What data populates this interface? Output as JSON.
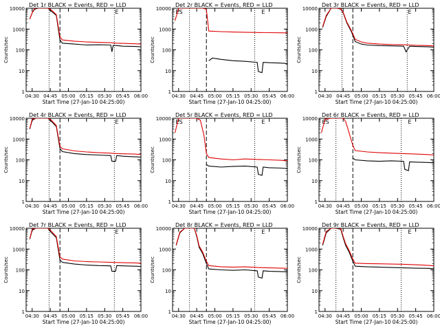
{
  "figure": {
    "xlabel": "Start Time (27-Jan-10 04:25:00)",
    "ylabel": "Counts/sec",
    "x_ticks": [
      "04:30",
      "04:45",
      "05:00",
      "05:15",
      "05:30",
      "05:45",
      "06:00"
    ],
    "y_ticks": [
      "1",
      "10",
      "100",
      "1000",
      "10000"
    ],
    "colors": {
      "events": "#000000",
      "lld": "#e00000",
      "axes": "#000000",
      "background": "#ffffff"
    }
  },
  "chart_data": [
    {
      "type": "line",
      "title": "Det 1r BLACK = Events, RED = LLD",
      "x_units": "minutes after 04:25:00",
      "y_scale": "log",
      "ylim": [
        1,
        10000
      ],
      "xlim": [
        0,
        95
      ],
      "markers": {
        "dotted": [
          19,
          73
        ],
        "dashed": [
          28
        ],
        "text_labels": [
          {
            "text": "E",
            "x": 73,
            "y": 10000
          }
        ]
      },
      "series": [
        {
          "color": "#000000",
          "x": [
            3,
            5,
            7,
            10,
            12,
            15,
            18,
            20,
            25,
            28,
            30,
            40,
            50,
            60,
            70,
            71,
            72,
            75,
            80,
            90,
            95
          ],
          "y": [
            3000,
            6000,
            9000,
            10000,
            10000,
            10000,
            10000,
            8000,
            4500,
            300,
            210,
            190,
            170,
            175,
            170,
            80,
            165,
            160,
            150,
            145,
            140
          ]
        },
        {
          "color": "#e00000",
          "x": [
            3,
            5,
            7,
            10,
            12,
            15,
            18,
            20,
            25,
            28,
            30,
            40,
            50,
            60,
            70,
            72,
            75,
            80,
            90,
            95
          ],
          "y": [
            3000,
            6000,
            10000,
            10000,
            10000,
            10000,
            10000,
            9000,
            5000,
            420,
            300,
            260,
            240,
            230,
            220,
            215,
            210,
            205,
            195,
            190
          ]
        }
      ]
    },
    {
      "type": "line",
      "title": "Det 2r BLACK = Events, RED = LLD",
      "x_units": "minutes after 04:25:00",
      "y_scale": "log",
      "ylim": [
        1,
        10000
      ],
      "xlim": [
        0,
        95
      ],
      "markers": {
        "dotted": [
          14,
          68
        ],
        "dashed": [
          28
        ],
        "text_labels": [
          {
            "text": "ES",
            "x": 2,
            "y": 10000
          },
          {
            "text": "E",
            "x": 73,
            "y": 10000
          }
        ]
      },
      "series": [
        {
          "color": "#000000",
          "x": [
            30,
            33,
            40,
            50,
            60,
            70,
            71,
            74,
            75,
            80,
            90,
            95
          ],
          "y": [
            30,
            40,
            35,
            30,
            28,
            25,
            9,
            8,
            25,
            24,
            23,
            22
          ]
        },
        {
          "color": "#e00000",
          "x": [
            2,
            5,
            10,
            15,
            20,
            25,
            28,
            30,
            40,
            50,
            60,
            70,
            80,
            90,
            95
          ],
          "y": [
            2500,
            10000,
            10000,
            10000,
            10000,
            10000,
            9000,
            800,
            750,
            720,
            700,
            680,
            670,
            660,
            650
          ]
        }
      ]
    },
    {
      "type": "line",
      "title": "Det 3r BLACK = Events, RED = LLD",
      "x_units": "minutes after 04:25:00",
      "y_scale": "log",
      "ylim": [
        1,
        10000
      ],
      "xlim": [
        0,
        95
      ],
      "markers": {
        "dotted": [
          19,
          73
        ],
        "dashed": [
          28
        ],
        "text_labels": [
          {
            "text": "E",
            "x": 73,
            "y": 10000
          }
        ]
      },
      "series": [
        {
          "color": "#000000",
          "x": [
            3,
            6,
            10,
            12,
            15,
            18,
            20,
            23,
            27,
            30,
            35,
            40,
            50,
            60,
            70,
            72,
            75,
            80,
            90,
            95
          ],
          "y": [
            1200,
            4000,
            10000,
            10000,
            10000,
            9000,
            6000,
            2000,
            700,
            250,
            190,
            170,
            160,
            155,
            150,
            80,
            150,
            145,
            140,
            135
          ]
        },
        {
          "color": "#e00000",
          "x": [
            3,
            6,
            10,
            12,
            15,
            18,
            20,
            23,
            27,
            30,
            35,
            40,
            50,
            60,
            70,
            75,
            80,
            90,
            95
          ],
          "y": [
            1300,
            4500,
            10000,
            10000,
            10000,
            9500,
            6500,
            2200,
            800,
            320,
            240,
            210,
            190,
            180,
            175,
            170,
            165,
            160,
            155
          ]
        }
      ]
    },
    {
      "type": "line",
      "title": "Det 4r BLACK = Events, RED = LLD",
      "x_units": "minutes after 04:25:00",
      "y_scale": "log",
      "ylim": [
        1,
        10000
      ],
      "xlim": [
        0,
        95
      ],
      "markers": {
        "dotted": [
          19,
          73
        ],
        "dashed": [
          28
        ],
        "text_labels": [
          {
            "text": "E",
            "x": 73,
            "y": 10000
          }
        ]
      },
      "series": [
        {
          "color": "#000000",
          "x": [
            3,
            5,
            8,
            12,
            15,
            18,
            20,
            25,
            28,
            30,
            40,
            50,
            60,
            70,
            71,
            74,
            75,
            80,
            90,
            95
          ],
          "y": [
            3000,
            8000,
            10000,
            10000,
            10000,
            10000,
            8000,
            4000,
            350,
            250,
            200,
            180,
            170,
            160,
            85,
            85,
            160,
            150,
            140,
            135
          ]
        },
        {
          "color": "#e00000",
          "x": [
            3,
            5,
            8,
            12,
            15,
            18,
            20,
            25,
            28,
            30,
            40,
            50,
            60,
            70,
            75,
            80,
            90,
            95
          ],
          "y": [
            3200,
            9000,
            10000,
            10000,
            10000,
            10000,
            9000,
            4500,
            450,
            340,
            270,
            240,
            220,
            210,
            200,
            195,
            190,
            180
          ]
        }
      ]
    },
    {
      "type": "line",
      "title": "Det 5r BLACK = Events, RED = LLD",
      "x_units": "minutes after 04:25:00",
      "y_scale": "log",
      "ylim": [
        1,
        10000
      ],
      "xlim": [
        0,
        95
      ],
      "markers": {
        "dotted": [
          14,
          68
        ],
        "dashed": [
          28
        ],
        "text_labels": [
          {
            "text": "ES",
            "x": 2,
            "y": 10000
          },
          {
            "text": "E",
            "x": 73,
            "y": 10000
          }
        ]
      },
      "series": [
        {
          "color": "#000000",
          "x": [
            28,
            30,
            40,
            50,
            60,
            70,
            71,
            74,
            75,
            80,
            90,
            95
          ],
          "y": [
            60,
            50,
            45,
            48,
            50,
            45,
            20,
            18,
            45,
            42,
            40,
            38
          ]
        },
        {
          "color": "#e00000",
          "x": [
            2,
            5,
            10,
            15,
            20,
            23,
            26,
            28,
            30,
            40,
            50,
            60,
            70,
            80,
            90,
            95
          ],
          "y": [
            2000,
            10000,
            10000,
            10000,
            10000,
            8000,
            1500,
            200,
            130,
            110,
            100,
            110,
            105,
            100,
            95,
            90
          ]
        }
      ]
    },
    {
      "type": "line",
      "title": "Det 6r BLACK = Events, RED = LLD",
      "x_units": "minutes after 04:25:00",
      "y_scale": "log",
      "ylim": [
        1,
        10000
      ],
      "xlim": [
        0,
        95
      ],
      "markers": {
        "dotted": [
          14,
          68
        ],
        "dashed": [
          28
        ],
        "text_labels": [
          {
            "text": "ES",
            "x": 2,
            "y": 10000
          },
          {
            "text": "E",
            "x": 73,
            "y": 10000
          }
        ]
      },
      "series": [
        {
          "color": "#000000",
          "x": [
            28,
            30,
            40,
            50,
            60,
            70,
            71,
            74,
            75,
            80,
            90,
            95
          ],
          "y": [
            120,
            100,
            90,
            85,
            90,
            85,
            35,
            30,
            80,
            78,
            75,
            72
          ]
        },
        {
          "color": "#e00000",
          "x": [
            2,
            5,
            10,
            15,
            20,
            22,
            24,
            26,
            28,
            30,
            40,
            50,
            60,
            70,
            80,
            90,
            95
          ],
          "y": [
            2000,
            9000,
            10000,
            10000,
            10000,
            7000,
            3000,
            1200,
            500,
            280,
            240,
            220,
            210,
            200,
            190,
            180,
            170
          ]
        }
      ]
    },
    {
      "type": "line",
      "title": "Det 7r BLACK = Events, RED = LLD",
      "x_units": "minutes after 04:25:00",
      "y_scale": "log",
      "ylim": [
        1,
        10000
      ],
      "xlim": [
        0,
        95
      ],
      "markers": {
        "dotted": [
          19,
          73
        ],
        "dashed": [
          28
        ],
        "text_labels": [
          {
            "text": "E",
            "x": 73,
            "y": 10000
          }
        ]
      },
      "series": [
        {
          "color": "#000000",
          "x": [
            3,
            5,
            8,
            12,
            15,
            18,
            20,
            25,
            28,
            30,
            40,
            50,
            60,
            70,
            71,
            74,
            75,
            80,
            90,
            95
          ],
          "y": [
            3000,
            8000,
            10000,
            10000,
            10000,
            10000,
            7000,
            3500,
            300,
            230,
            190,
            170,
            160,
            155,
            85,
            85,
            160,
            155,
            150,
            145
          ]
        },
        {
          "color": "#e00000",
          "x": [
            3,
            5,
            8,
            12,
            15,
            18,
            20,
            25,
            28,
            30,
            40,
            50,
            60,
            70,
            75,
            80,
            90,
            95
          ],
          "y": [
            3200,
            9000,
            10000,
            10000,
            10000,
            10000,
            8000,
            4000,
            420,
            330,
            270,
            250,
            240,
            230,
            225,
            220,
            215,
            210
          ]
        }
      ]
    },
    {
      "type": "line",
      "title": "Det 8r BLACK = Events, RED = LLD",
      "x_units": "minutes after 04:25:00",
      "y_scale": "log",
      "ylim": [
        1,
        10000
      ],
      "xlim": [
        0,
        95
      ],
      "markers": {
        "dotted": [
          14,
          68
        ],
        "dashed": [
          28
        ],
        "text_labels": [
          {
            "text": "E",
            "x": 73,
            "y": 10000
          }
        ]
      },
      "series": [
        {
          "color": "#000000",
          "x": [
            3,
            6,
            10,
            14,
            18,
            20,
            22,
            25,
            28,
            30,
            40,
            50,
            60,
            70,
            71,
            74,
            75,
            80,
            90,
            95
          ],
          "y": [
            1500,
            6000,
            10000,
            10000,
            10000,
            4000,
            1200,
            600,
            200,
            110,
            100,
            95,
            100,
            90,
            45,
            40,
            90,
            85,
            82,
            80
          ]
        },
        {
          "color": "#e00000",
          "x": [
            3,
            6,
            10,
            14,
            18,
            20,
            22,
            25,
            28,
            30,
            40,
            50,
            60,
            70,
            80,
            90,
            95
          ],
          "y": [
            1600,
            6500,
            10000,
            10000,
            10000,
            4500,
            1400,
            700,
            260,
            160,
            140,
            135,
            140,
            130,
            125,
            120,
            118
          ]
        }
      ]
    },
    {
      "type": "line",
      "title": "Det 9r BLACK = Events, RED = LLD",
      "x_units": "minutes after 04:25:00",
      "y_scale": "log",
      "ylim": [
        1,
        10000
      ],
      "xlim": [
        0,
        95
      ],
      "markers": {
        "dotted": [
          14,
          68
        ],
        "dashed": [
          28
        ],
        "text_labels": [
          {
            "text": "E",
            "x": 73,
            "y": 10000
          }
        ]
      },
      "series": [
        {
          "color": "#000000",
          "x": [
            3,
            6,
            10,
            14,
            18,
            20,
            22,
            25,
            28,
            30,
            40,
            50,
            60,
            70,
            80,
            90,
            95
          ],
          "y": [
            1500,
            6000,
            10000,
            10000,
            9000,
            3500,
            1500,
            700,
            260,
            150,
            140,
            135,
            130,
            125,
            120,
            118,
            115
          ]
        },
        {
          "color": "#e00000",
          "x": [
            3,
            6,
            10,
            14,
            18,
            20,
            22,
            25,
            28,
            30,
            40,
            50,
            60,
            70,
            80,
            90,
            95
          ],
          "y": [
            1700,
            7000,
            10000,
            10000,
            10000,
            4000,
            1800,
            850,
            330,
            210,
            200,
            195,
            190,
            185,
            175,
            165,
            155
          ]
        }
      ]
    }
  ]
}
